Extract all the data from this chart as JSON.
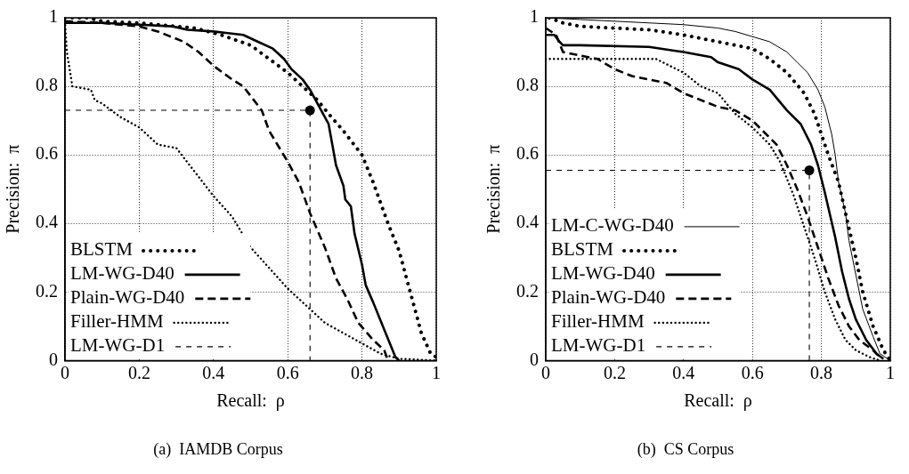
{
  "chart_data": [
    {
      "type": "line",
      "title": "(a)  IAMDB Corpus",
      "xlabel": "Recall:  ρ",
      "ylabel": "Precision:  π",
      "xlim": [
        0,
        1
      ],
      "ylim": [
        0,
        1
      ],
      "xticks": [
        0,
        0.2,
        0.4,
        0.6,
        0.8,
        1
      ],
      "yticks": [
        0,
        0.2,
        0.4,
        0.6,
        0.8,
        1
      ],
      "grid": true,
      "legend": "bottom left",
      "series": [
        {
          "name": "BLSTM",
          "color": "#000000",
          "line_style": "dotted",
          "x": [
            0,
            0.06,
            0.1,
            0.2,
            0.3,
            0.35,
            0.42,
            0.5,
            0.55,
            0.6,
            0.65,
            0.68,
            0.71,
            0.75,
            0.8,
            0.83,
            0.87,
            0.9,
            0.93,
            0.96,
            0.985,
            1
          ],
          "values": [
            1,
            1,
            0.99,
            0.985,
            0.975,
            0.97,
            0.95,
            0.92,
            0.88,
            0.84,
            0.79,
            0.76,
            0.72,
            0.67,
            0.6,
            0.52,
            0.4,
            0.32,
            0.2,
            0.08,
            0.02,
            0.01
          ]
        },
        {
          "name": "LM-WG-D40",
          "color": "#000000",
          "line_style": "solid",
          "x": [
            0,
            0.1,
            0.2,
            0.29,
            0.33,
            0.4,
            0.48,
            0.52,
            0.56,
            0.59,
            0.61,
            0.64,
            0.66,
            0.68,
            0.71,
            0.72,
            0.73,
            0.75,
            0.755,
            0.77,
            0.78,
            0.8,
            0.81,
            0.83,
            0.86,
            0.89,
            0.9
          ],
          "values": [
            0.985,
            0.985,
            0.98,
            0.975,
            0.965,
            0.96,
            0.95,
            0.93,
            0.91,
            0.88,
            0.85,
            0.82,
            0.79,
            0.75,
            0.69,
            0.63,
            0.57,
            0.51,
            0.47,
            0.45,
            0.37,
            0.28,
            0.22,
            0.17,
            0.09,
            0.01,
            0
          ]
        },
        {
          "name": "Plain-WG-D40",
          "color": "#000000",
          "line_style": "dashed",
          "x": [
            0,
            0.1,
            0.2,
            0.25,
            0.32,
            0.36,
            0.4,
            0.45,
            0.48,
            0.53,
            0.55,
            0.6,
            0.63,
            0.66,
            0.7,
            0.73,
            0.76,
            0.79,
            0.83,
            0.86,
            0.87
          ],
          "values": [
            0.99,
            0.985,
            0.975,
            0.96,
            0.93,
            0.9,
            0.86,
            0.82,
            0.8,
            0.73,
            0.67,
            0.58,
            0.52,
            0.43,
            0.33,
            0.24,
            0.18,
            0.11,
            0.06,
            0.03,
            0
          ]
        },
        {
          "name": "Filler-HMM",
          "color": "#000000",
          "line_style": "dotted",
          "x": [
            0,
            0.005,
            0.02,
            0.07,
            0.08,
            0.1,
            0.15,
            0.2,
            0.25,
            0.3,
            0.35,
            0.4,
            0.45,
            0.5,
            0.55,
            0.6,
            0.65,
            0.7,
            0.75,
            0.8,
            0.85,
            0.9,
            1
          ],
          "values": [
            0.99,
            0.9,
            0.8,
            0.79,
            0.76,
            0.75,
            0.71,
            0.68,
            0.63,
            0.62,
            0.55,
            0.48,
            0.42,
            0.33,
            0.27,
            0.21,
            0.16,
            0.11,
            0.08,
            0.05,
            0.02,
            0.005,
            0
          ]
        },
        {
          "name": "LM-WG-D1",
          "color": "#000000",
          "line_style": "dashed",
          "x": [
            0,
            0.66,
            0.66
          ],
          "values": [
            0.73,
            0.73,
            0
          ]
        },
        {
          "type": "scatter",
          "color": "#000000",
          "marker": "circle",
          "x": [
            0.66
          ],
          "values": [
            0.73
          ]
        }
      ]
    },
    {
      "type": "line",
      "title": "(b)  CS Corpus",
      "xlabel": "Recall:  ρ",
      "ylabel": "Precision:  π",
      "xlim": [
        0,
        1
      ],
      "ylim": [
        0,
        1
      ],
      "xticks": [
        0,
        0.2,
        0.4,
        0.6,
        0.8,
        1
      ],
      "yticks": [
        0,
        0.2,
        0.4,
        0.6,
        0.8,
        1
      ],
      "grid": true,
      "legend": "bottom left",
      "series": [
        {
          "name": "LM-C-WG-D40",
          "color": "#000000",
          "line_style": "solid",
          "x": [
            0,
            0.1,
            0.2,
            0.3,
            0.4,
            0.5,
            0.55,
            0.6,
            0.65,
            0.7,
            0.73,
            0.76,
            0.79,
            0.81,
            0.83,
            0.84,
            0.85,
            0.87,
            0.88,
            0.9,
            0.92,
            0.95,
            0.97,
            1
          ],
          "values": [
            1,
            0.995,
            0.99,
            0.985,
            0.98,
            0.97,
            0.96,
            0.945,
            0.93,
            0.9,
            0.87,
            0.84,
            0.79,
            0.74,
            0.66,
            0.6,
            0.52,
            0.43,
            0.35,
            0.25,
            0.15,
            0.07,
            0.02,
            0
          ]
        },
        {
          "name": "BLSTM",
          "color": "#000000",
          "line_style": "dotted",
          "x": [
            0.01,
            0.05,
            0.1,
            0.2,
            0.3,
            0.4,
            0.5,
            0.6,
            0.65,
            0.7,
            0.75,
            0.78,
            0.8,
            0.82,
            0.85,
            0.87,
            0.9,
            0.92,
            0.95,
            0.98,
            1
          ],
          "values": [
            1,
            0.985,
            0.975,
            0.97,
            0.965,
            0.95,
            0.93,
            0.91,
            0.88,
            0.84,
            0.78,
            0.72,
            0.66,
            0.6,
            0.52,
            0.43,
            0.3,
            0.2,
            0.1,
            0.03,
            0
          ]
        },
        {
          "name": "LM-WG-D40",
          "color": "#000000",
          "line_style": "solid",
          "x": [
            0,
            0.025,
            0.04,
            0.05,
            0.1,
            0.3,
            0.4,
            0.48,
            0.5,
            0.56,
            0.6,
            0.65,
            0.7,
            0.74,
            0.77,
            0.79,
            0.81,
            0.84,
            0.86,
            0.88,
            0.9,
            0.93,
            0.96,
            0.98
          ],
          "values": [
            0.95,
            0.95,
            0.93,
            0.92,
            0.92,
            0.915,
            0.9,
            0.885,
            0.87,
            0.85,
            0.82,
            0.79,
            0.73,
            0.69,
            0.63,
            0.57,
            0.49,
            0.36,
            0.26,
            0.18,
            0.12,
            0.06,
            0.02,
            0.005
          ]
        },
        {
          "name": "Plain-WG-D40",
          "color": "#000000",
          "line_style": "dashed",
          "x": [
            0,
            0.03,
            0.05,
            0.1,
            0.15,
            0.2,
            0.25,
            0.3,
            0.35,
            0.4,
            0.45,
            0.5,
            0.55,
            0.6,
            0.63,
            0.67,
            0.7,
            0.73,
            0.76,
            0.79,
            0.82,
            0.85,
            0.88,
            0.91,
            0.95,
            0.97
          ],
          "values": [
            0.97,
            0.95,
            0.9,
            0.89,
            0.88,
            0.85,
            0.83,
            0.82,
            0.81,
            0.78,
            0.76,
            0.74,
            0.73,
            0.7,
            0.67,
            0.63,
            0.57,
            0.5,
            0.42,
            0.33,
            0.24,
            0.16,
            0.1,
            0.06,
            0.03,
            0.01
          ]
        },
        {
          "name": "Filler-HMM",
          "color": "#000000",
          "line_style": "dotted",
          "x": [
            0,
            0.1,
            0.2,
            0.32,
            0.36,
            0.4,
            0.45,
            0.5,
            0.55,
            0.6,
            0.65,
            0.68,
            0.72,
            0.75,
            0.78,
            0.81,
            0.84,
            0.87,
            0.9,
            0.94,
            0.97
          ],
          "values": [
            0.88,
            0.88,
            0.88,
            0.88,
            0.86,
            0.84,
            0.8,
            0.78,
            0.72,
            0.68,
            0.63,
            0.58,
            0.48,
            0.39,
            0.3,
            0.2,
            0.12,
            0.06,
            0.03,
            0.01,
            0
          ]
        },
        {
          "name": "LM-WG-D1",
          "color": "#000000",
          "line_style": "dashed",
          "x": [
            0,
            0.765,
            0.765
          ],
          "values": [
            0.555,
            0.555,
            0
          ]
        },
        {
          "type": "scatter",
          "color": "#000000",
          "marker": "circle",
          "x": [
            0.765
          ],
          "values": [
            0.555
          ]
        }
      ]
    }
  ]
}
